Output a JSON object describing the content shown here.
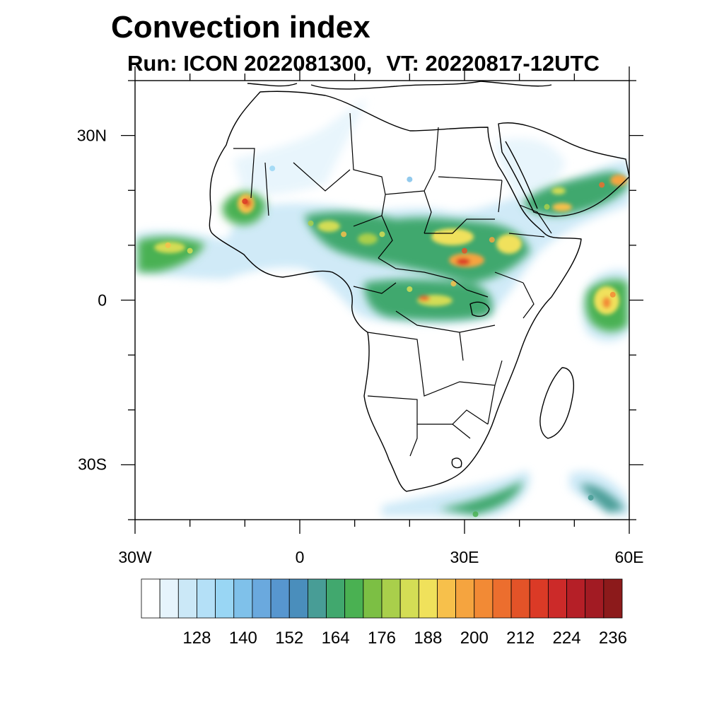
{
  "title": "Convection index",
  "subtitle": {
    "run_label": "Run: ICON 2022081300,",
    "valid_time_label": "VT: 20220817-12UTC"
  },
  "map": {
    "lon_range": [
      -30,
      60
    ],
    "lat_range": [
      -40,
      40
    ],
    "y_tick_labels": [
      {
        "lat": 30,
        "label": "30N"
      },
      {
        "lat": 0,
        "label": "0"
      },
      {
        "lat": -30,
        "label": "30S"
      }
    ],
    "x_tick_labels": [
      {
        "lon": -30,
        "label": "30W"
      },
      {
        "lon": 0,
        "label": "0"
      },
      {
        "lon": 30,
        "label": "30E"
      },
      {
        "lon": 60,
        "label": "60E"
      }
    ],
    "field_cells": [
      {
        "lon": -20,
        "lat": 9,
        "value": 172
      },
      {
        "lon": -24,
        "lat": 10,
        "value": 178
      },
      {
        "lon": -10,
        "lat": 18,
        "value": 200
      },
      {
        "lon": 2,
        "lat": 14,
        "value": 166
      },
      {
        "lon": 8,
        "lat": 12,
        "value": 180
      },
      {
        "lon": 15,
        "lat": 12,
        "value": 170
      },
      {
        "lon": 25,
        "lat": 12,
        "value": 176
      },
      {
        "lon": 30,
        "lat": 9,
        "value": 196
      },
      {
        "lon": 35,
        "lat": 11,
        "value": 184
      },
      {
        "lon": 28,
        "lat": 3,
        "value": 178
      },
      {
        "lon": 20,
        "lat": 2,
        "value": 170
      },
      {
        "lon": 45,
        "lat": 17,
        "value": 166
      },
      {
        "lon": 55,
        "lat": 21,
        "value": 190
      },
      {
        "lon": 57,
        "lat": 1,
        "value": 188
      },
      {
        "lon": 20,
        "lat": 22,
        "value": 134
      },
      {
        "lon": -5,
        "lat": 24,
        "value": 130
      },
      {
        "lon": 32,
        "lat": -39,
        "value": 158
      },
      {
        "lon": 53,
        "lat": -36,
        "value": 150
      }
    ]
  },
  "colorbar": {
    "colors": [
      "#ffffff",
      "#e6f4fc",
      "#cbe8f7",
      "#b4e0f7",
      "#99d6f4",
      "#7fc1ea",
      "#6aa9de",
      "#5796cf",
      "#4a8ebc",
      "#489d96",
      "#41a86e",
      "#4ab152",
      "#7cbf44",
      "#a9cf4b",
      "#d4dd55",
      "#f0e15b",
      "#f7c04b",
      "#f5a43f",
      "#f28a35",
      "#ec6e2e",
      "#e35328",
      "#db3a26",
      "#cc2a29",
      "#b51f27",
      "#a21b23",
      "#8c1a1b"
    ],
    "labels": [
      {
        "index": 3,
        "text": "128"
      },
      {
        "index": 6,
        "text": "140"
      },
      {
        "index": 9,
        "text": "152"
      },
      {
        "index": 12,
        "text": "164"
      },
      {
        "index": 15,
        "text": "176"
      },
      {
        "index": 18,
        "text": "188"
      },
      {
        "index": 21,
        "text": "200"
      },
      {
        "index": 24,
        "text": "212"
      },
      {
        "index": 27,
        "text": "224"
      },
      {
        "index": 30,
        "text": "236"
      }
    ]
  },
  "styles": {
    "coast_color": "#000000",
    "label_color": "#000000"
  }
}
